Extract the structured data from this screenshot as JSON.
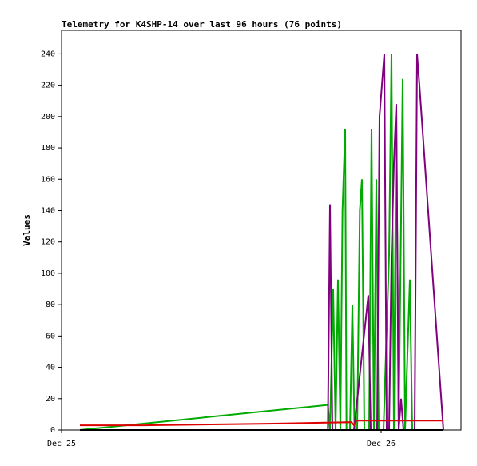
{
  "chart_data": {
    "type": "line",
    "title": "Telemetry for K4SHP-14 over last 96 hours (76 points)",
    "y_label": "Values",
    "xlim": [
      0,
      30
    ],
    "xticks": [
      {
        "value": 0,
        "label": "Dec 25"
      },
      {
        "value": 24,
        "label": "Dec 26"
      }
    ],
    "ylim": [
      0,
      255
    ],
    "yticks": [
      0,
      20,
      40,
      60,
      80,
      100,
      120,
      140,
      160,
      180,
      200,
      220,
      240
    ],
    "series": [
      {
        "color": "#00aa00",
        "x": [
          1.38,
          20.0,
          20.16,
          20.4,
          20.58,
          20.76,
          20.94,
          21.1,
          21.3,
          21.4,
          21.66,
          21.84,
          22.0,
          22.2,
          22.4,
          22.56,
          22.74,
          22.92,
          23.1,
          23.28,
          23.46,
          23.64,
          23.82,
          24.18,
          24.6,
          24.78,
          24.96,
          25.14,
          25.32,
          25.62,
          25.8,
          26.16,
          26.34
        ],
        "values": [
          0,
          16,
          0,
          90,
          0,
          96,
          0,
          140,
          192,
          0,
          0,
          80,
          0,
          0,
          140,
          160,
          0,
          0,
          0,
          192,
          0,
          160,
          0,
          0,
          112,
          240,
          0,
          200,
          0,
          224,
          0,
          96,
          0
        ]
      },
      {
        "color": "#800080",
        "x": [
          20.0,
          20.16,
          20.34,
          21.96,
          23.04,
          23.22,
          23.7,
          23.88,
          24.06,
          24.24,
          24.42,
          24.6,
          24.78,
          24.96,
          25.14,
          25.32,
          25.5,
          25.68,
          26.52,
          26.7,
          26.88,
          28.68
        ],
        "values": [
          0,
          144,
          0,
          0,
          86,
          0,
          0,
          200,
          220,
          240,
          0,
          0,
          110,
          170,
          208,
          0,
          20,
          0,
          0,
          240,
          220,
          0
        ]
      },
      {
        "color": "#dd0000",
        "x": [
          1.38,
          6.18,
          15.48,
          21.78,
          21.96,
          22.14,
          28.68
        ],
        "values": [
          3,
          3,
          4,
          5,
          3,
          6,
          6
        ]
      },
      {
        "color": "#000000",
        "x": [
          1.38,
          28.68
        ],
        "values": [
          0,
          0
        ]
      }
    ]
  }
}
